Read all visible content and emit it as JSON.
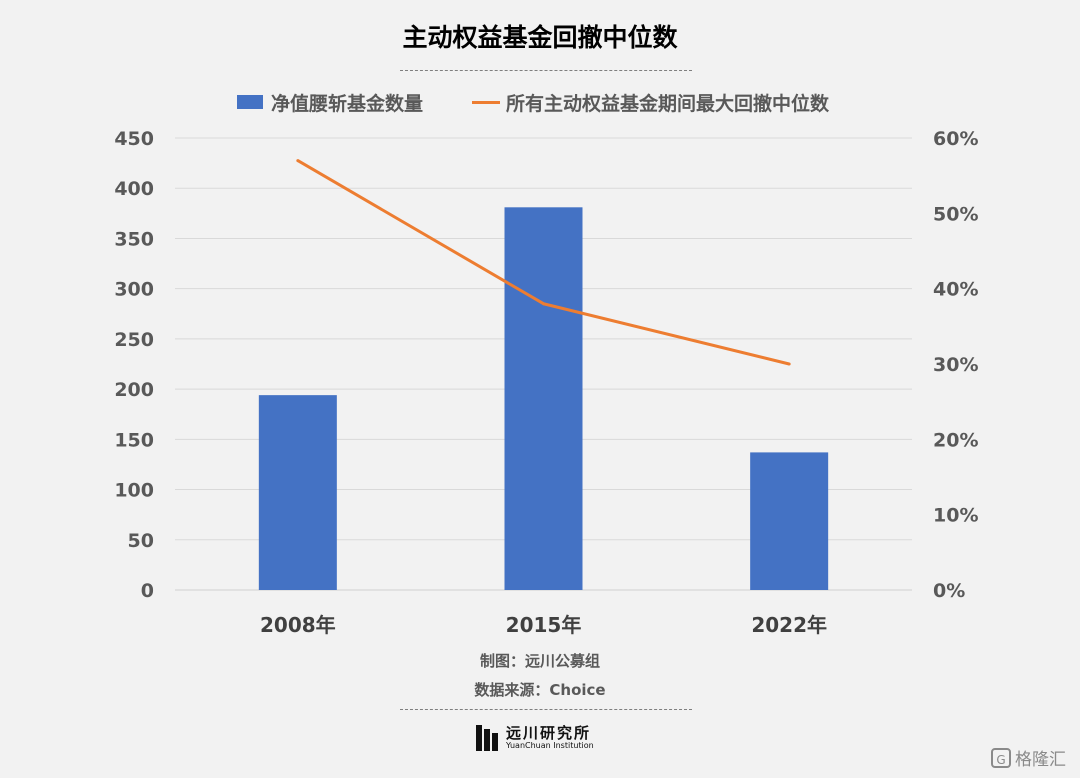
{
  "chart_data": {
    "type": "bar",
    "title": "主动权益基金回撤中位数",
    "categories": [
      "2008年",
      "2015年",
      "2022年"
    ],
    "series": [
      {
        "name": "净值腰斩基金数量",
        "type": "bar",
        "axis": "left",
        "color": "#4472c4",
        "values": [
          194,
          381,
          137
        ]
      },
      {
        "name": "所有主动权益基金期间最大回撤中位数",
        "type": "line",
        "axis": "right",
        "color": "#ed7d31",
        "values": [
          0.57,
          0.38,
          0.3
        ]
      }
    ],
    "yticks_left": [
      "0",
      "50",
      "100",
      "150",
      "200",
      "250",
      "300",
      "350",
      "400",
      "450"
    ],
    "yticks_right": [
      "0%",
      "10%",
      "20%",
      "30%",
      "40%",
      "50%",
      "60%"
    ],
    "ylim_left": [
      0,
      450
    ],
    "ylim_right": [
      0,
      0.6
    ],
    "grid": true,
    "legend_position": "top"
  },
  "footer": {
    "maker": "制图：远川公募组",
    "source": "数据来源：Choice"
  },
  "brand": {
    "name": "远川研究所",
    "sub": "YuanChuan Institution"
  },
  "watermark": {
    "icon": "G",
    "text": "格隆汇"
  }
}
